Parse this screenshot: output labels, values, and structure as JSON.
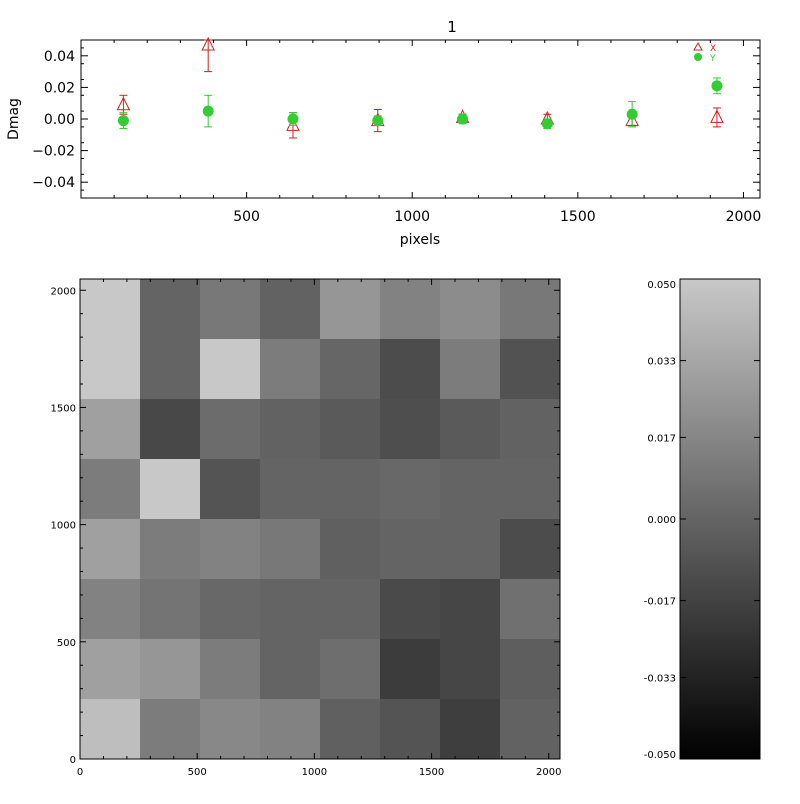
{
  "chart_data": [
    {
      "type": "scatter",
      "title": "1",
      "xlabel": "pixels",
      "ylabel": "Dmag",
      "xlim": [
        0,
        2050
      ],
      "ylim": [
        -0.05,
        0.05
      ],
      "xticks": [
        500,
        1000,
        1500,
        2000
      ],
      "xtick_labels": [
        "500",
        "1000",
        "1500",
        "2000"
      ],
      "yticks": [
        -0.04,
        -0.02,
        0.0,
        0.02,
        0.04
      ],
      "ytick_labels": [
        "−0.04",
        "−0.02",
        "0.00",
        "0.02",
        "0.04"
      ],
      "legend_position": "top-right",
      "series": [
        {
          "name": "X",
          "marker": "triangle-open",
          "color": "#cc2222",
          "points": [
            {
              "x": 128,
              "y": 0.009,
              "err": 0.006
            },
            {
              "x": 384,
              "y": 0.05,
              "err": 0.02
            },
            {
              "x": 640,
              "y": -0.004,
              "err": 0.008
            },
            {
              "x": 896,
              "y": -0.001,
              "err": 0.007
            },
            {
              "x": 1152,
              "y": 0.001,
              "err": 0.002
            },
            {
              "x": 1408,
              "y": 0.0,
              "err": 0.003
            },
            {
              "x": 1664,
              "y": -0.001,
              "err": 0.003
            },
            {
              "x": 1920,
              "y": 0.001,
              "err": 0.006
            }
          ]
        },
        {
          "name": "Y",
          "marker": "circle-filled",
          "color": "#33cc33",
          "points": [
            {
              "x": 128,
              "y": -0.001,
              "err": 0.005
            },
            {
              "x": 384,
              "y": 0.005,
              "err": 0.01
            },
            {
              "x": 640,
              "y": 0.0,
              "err": 0.004
            },
            {
              "x": 896,
              "y": -0.001,
              "err": 0.003
            },
            {
              "x": 1152,
              "y": 0.0,
              "err": 0.003
            },
            {
              "x": 1408,
              "y": -0.003,
              "err": 0.003
            },
            {
              "x": 1664,
              "y": 0.003,
              "err": 0.008
            },
            {
              "x": 1920,
              "y": 0.021,
              "err": 0.005
            }
          ]
        }
      ]
    },
    {
      "type": "heatmap",
      "xlim": [
        0,
        2048
      ],
      "ylim": [
        0,
        2048
      ],
      "xticks": [
        0,
        500,
        1000,
        1500,
        2000
      ],
      "xtick_labels": [
        "0",
        "500",
        "1000",
        "1500",
        "2000"
      ],
      "yticks": [
        0,
        500,
        1000,
        1500,
        2000
      ],
      "ytick_labels": [
        "0",
        "500",
        "1000",
        "1500",
        "2000"
      ],
      "value_range": [
        -0.05,
        0.05
      ],
      "colormap": "grayscale",
      "rows_top_to_bottom": [
        [
          0.05,
          0.0,
          0.01,
          -0.001,
          0.025,
          0.015,
          0.02,
          0.01
        ],
        [
          0.05,
          0.0,
          0.05,
          0.012,
          0.001,
          -0.012,
          0.012,
          -0.009
        ],
        [
          0.03,
          -0.014,
          0.004,
          -0.001,
          -0.005,
          -0.011,
          -0.005,
          -0.001
        ],
        [
          0.012,
          0.05,
          -0.008,
          0.0,
          0.0,
          0.002,
          0.0,
          0.0
        ],
        [
          0.03,
          0.012,
          0.015,
          0.01,
          -0.002,
          0.0,
          0.0,
          -0.012
        ],
        [
          0.015,
          0.008,
          0.002,
          0.0,
          0.0,
          -0.013,
          -0.015,
          0.006
        ],
        [
          0.03,
          0.025,
          0.012,
          0.0,
          0.005,
          -0.02,
          -0.015,
          -0.003
        ],
        [
          0.045,
          0.012,
          0.018,
          0.015,
          -0.002,
          -0.008,
          -0.019,
          -0.001
        ]
      ]
    },
    {
      "type": "colorbar",
      "range": [
        -0.05,
        0.05
      ],
      "tick_values": [
        0.05,
        0.033,
        0.017,
        0.0,
        -0.017,
        -0.033,
        -0.05
      ],
      "tick_labels": [
        "0.050",
        "0.033",
        "0.017",
        "0.000",
        "-0.017",
        "-0.033",
        "-0.050"
      ]
    }
  ]
}
